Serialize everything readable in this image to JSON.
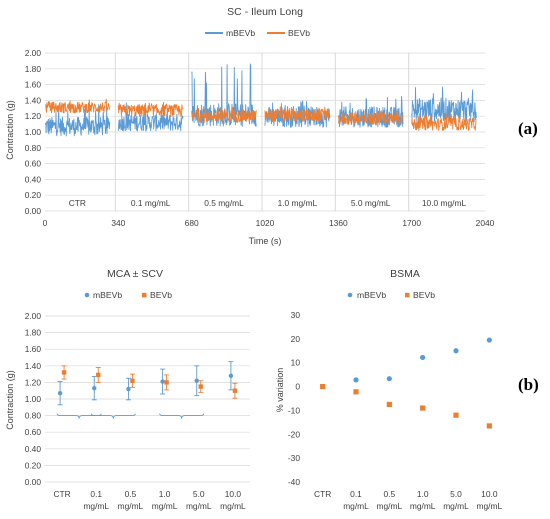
{
  "panel_labels": {
    "a": "(a)",
    "b": "(b)"
  },
  "colors": {
    "mBEVb": "#5b9bd5",
    "BEVb": "#ed7d31",
    "grid": "#d9d9d9",
    "text": "#404040"
  },
  "chart_data": [
    {
      "type": "line",
      "title": "SC - Ileum Long",
      "xlabel": "Time (s)",
      "ylabel": "Contraction (g)",
      "xlim": [
        0,
        2040
      ],
      "ylim": [
        0,
        2
      ],
      "xticks": [
        "0",
        "340",
        "680",
        "1020",
        "1360",
        "1700",
        "2040"
      ],
      "yticks": [
        "0.00",
        "0.20",
        "0.40",
        "0.60",
        "0.80",
        "1.00",
        "1.20",
        "1.40",
        "1.60",
        "1.80",
        "2.00"
      ],
      "grid": true,
      "legend": "top",
      "segments": [
        {
          "label": "CTR",
          "start": 0,
          "end": 300
        },
        {
          "label": "0.1 mg/mL",
          "start": 340,
          "end": 640
        },
        {
          "label": "0.5 mg/mL",
          "start": 680,
          "end": 980
        },
        {
          "label": "1.0 mg/mL",
          "start": 1020,
          "end": 1320
        },
        {
          "label": "5.0 mg/mL",
          "start": 1360,
          "end": 1660
        },
        {
          "label": "10.0 mg/mL",
          "start": 1700,
          "end": 2000
        }
      ],
      "series": [
        {
          "name": "mBEVb",
          "color": "#5b9bd5",
          "mean": [
            1.07,
            1.12,
            1.22,
            1.19,
            1.19,
            1.28
          ],
          "spread": [
            0.12,
            0.11,
            0.15,
            0.13,
            0.13,
            0.15
          ],
          "peak": [
            1.35,
            1.38,
            1.88,
            1.4,
            1.45,
            1.62
          ]
        },
        {
          "name": "BEVb",
          "color": "#ed7d31",
          "mean": [
            1.31,
            1.27,
            1.2,
            1.21,
            1.17,
            1.1
          ],
          "spread": [
            0.07,
            0.08,
            0.08,
            0.08,
            0.08,
            0.08
          ],
          "peak": [
            1.42,
            1.37,
            1.32,
            1.34,
            1.3,
            1.24
          ]
        }
      ]
    },
    {
      "type": "scatter",
      "title": "MCA ± SCV",
      "ylabel": "Contraction (g)",
      "ylim": [
        0,
        2
      ],
      "yticks": [
        "0.00",
        "0.20",
        "0.40",
        "0.60",
        "0.80",
        "1.00",
        "1.20",
        "1.40",
        "1.60",
        "1.80",
        "2.00"
      ],
      "categories": [
        [
          "CTR",
          ""
        ],
        [
          "0.1",
          "mg/mL"
        ],
        [
          "0.5",
          "mg/mL"
        ],
        [
          "1.0",
          "mg/mL"
        ],
        [
          "5.0",
          "mg/mL"
        ],
        [
          "10.0",
          "mg/mL"
        ]
      ],
      "grid": true,
      "legend": "top",
      "brackets": [
        [
          0,
          1
        ],
        [
          1,
          2
        ],
        [
          3,
          4
        ]
      ],
      "series": [
        {
          "name": "mBEVb",
          "color": "#5b9bd5",
          "marker": "circle",
          "values": [
            1.07,
            1.13,
            1.12,
            1.21,
            1.22,
            1.28
          ],
          "errors": [
            0.14,
            0.14,
            0.13,
            0.15,
            0.18,
            0.17
          ]
        },
        {
          "name": "BEVb",
          "color": "#ed7d31",
          "marker": "square",
          "values": [
            1.32,
            1.29,
            1.22,
            1.2,
            1.15,
            1.1
          ],
          "errors": [
            0.08,
            0.09,
            0.08,
            0.09,
            0.07,
            0.09
          ]
        }
      ]
    },
    {
      "type": "scatter",
      "title": "BSMA",
      "ylabel": "% variation",
      "ylim": [
        -40,
        30
      ],
      "yticks": [
        "30",
        "20",
        "10",
        "0",
        "-10",
        "-20",
        "-30",
        "-40"
      ],
      "categories": [
        [
          "CTR",
          ""
        ],
        [
          "0.1",
          "mg/mL"
        ],
        [
          "0.5",
          "mg/mL"
        ],
        [
          "1.0",
          "mg/mL"
        ],
        [
          "5.0",
          "mg/mL"
        ],
        [
          "10.0",
          "mg/mL"
        ]
      ],
      "grid": false,
      "legend": "top",
      "series": [
        {
          "name": "mBEVb",
          "color": "#5b9bd5",
          "marker": "circle",
          "values": [
            0,
            2.8,
            3.3,
            12.2,
            15,
            19.5
          ]
        },
        {
          "name": "BEVb",
          "color": "#ed7d31",
          "marker": "square",
          "values": [
            0,
            -2.2,
            -7.5,
            -9,
            -12,
            -16.5
          ]
        }
      ]
    }
  ]
}
